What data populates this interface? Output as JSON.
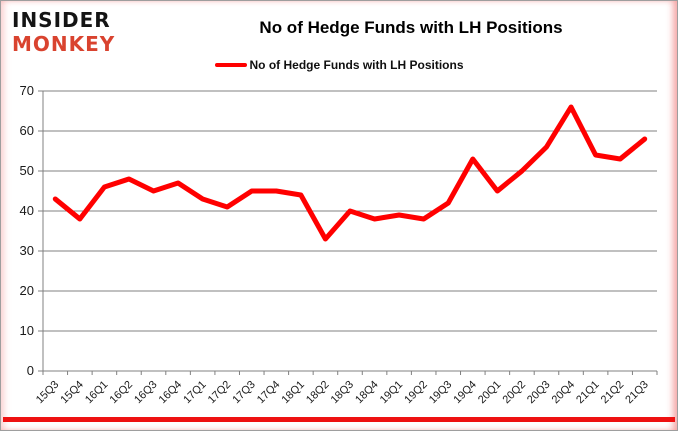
{
  "logo": {
    "line1": "INSIDER",
    "line2": "MONKEY",
    "accent_color": "#d9432f"
  },
  "header": {
    "title": "No of Hedge Funds with LH Positions"
  },
  "legend": {
    "label": "No of Hedge Funds with LH Positions",
    "swatch_color": "#ff0000"
  },
  "footer": {
    "rule_color": "#ee1111"
  },
  "chart_data": {
    "type": "line",
    "title": "No of Hedge Funds with LH Positions",
    "categories": [
      "15Q3",
      "15Q4",
      "16Q1",
      "16Q2",
      "16Q3",
      "16Q4",
      "17Q1",
      "17Q2",
      "17Q3",
      "17Q4",
      "18Q1",
      "18Q2",
      "18Q3",
      "18Q4",
      "19Q1",
      "19Q2",
      "19Q3",
      "19Q4",
      "20Q1",
      "20Q2",
      "20Q3",
      "20Q4",
      "21Q1",
      "21Q2",
      "21Q3"
    ],
    "series": [
      {
        "name": "No of Hedge Funds with LH Positions",
        "values": [
          43,
          38,
          46,
          48,
          45,
          47,
          43,
          41,
          45,
          45,
          44,
          33,
          40,
          38,
          39,
          38,
          42,
          53,
          45,
          50,
          56,
          66,
          54,
          53,
          58
        ]
      }
    ],
    "xlabel": "",
    "ylabel": "",
    "ylim": [
      0,
      70
    ],
    "yticks": [
      0,
      10,
      20,
      30,
      40,
      50,
      60,
      70
    ],
    "grid": true,
    "legend_position": "top-center",
    "line_color": "#ff0000",
    "line_width": 5,
    "gridline_color": "#808080",
    "axis_color": "#808080",
    "tick_label_color": "#1a1a1a"
  }
}
